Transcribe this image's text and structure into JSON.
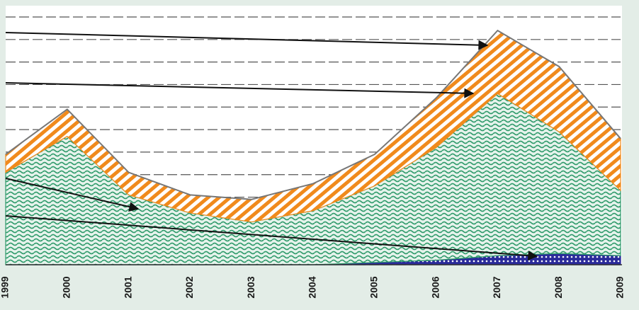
{
  "chart_data": {
    "type": "stacked-area",
    "categories": [
      "1999",
      "2000",
      "2001",
      "2002",
      "2003",
      "2004",
      "2005",
      "2006",
      "2007",
      "2008",
      "2009"
    ],
    "series": [
      {
        "color": "#2a2a9a",
        "values": [
          0,
          0,
          0,
          0,
          0,
          0,
          0.1,
          0.2,
          0.4,
          0.5,
          0.4
        ]
      },
      {
        "color": "#2e9a6a",
        "values": [
          4.1,
          5.7,
          3.1,
          2.3,
          1.9,
          2.4,
          3.4,
          5.0,
          7.2,
          5.4,
          2.9
        ]
      },
      {
        "color": "#f08a1c",
        "values": [
          0.8,
          1.2,
          1.0,
          0.8,
          1.0,
          1.2,
          1.4,
          2.2,
          2.8,
          2.9,
          2.3
        ]
      }
    ],
    "ylim": [
      0,
      11
    ],
    "yticks": [
      0,
      1,
      2,
      3,
      4,
      5,
      6,
      7,
      8,
      9,
      10,
      11
    ],
    "grid": true
  }
}
